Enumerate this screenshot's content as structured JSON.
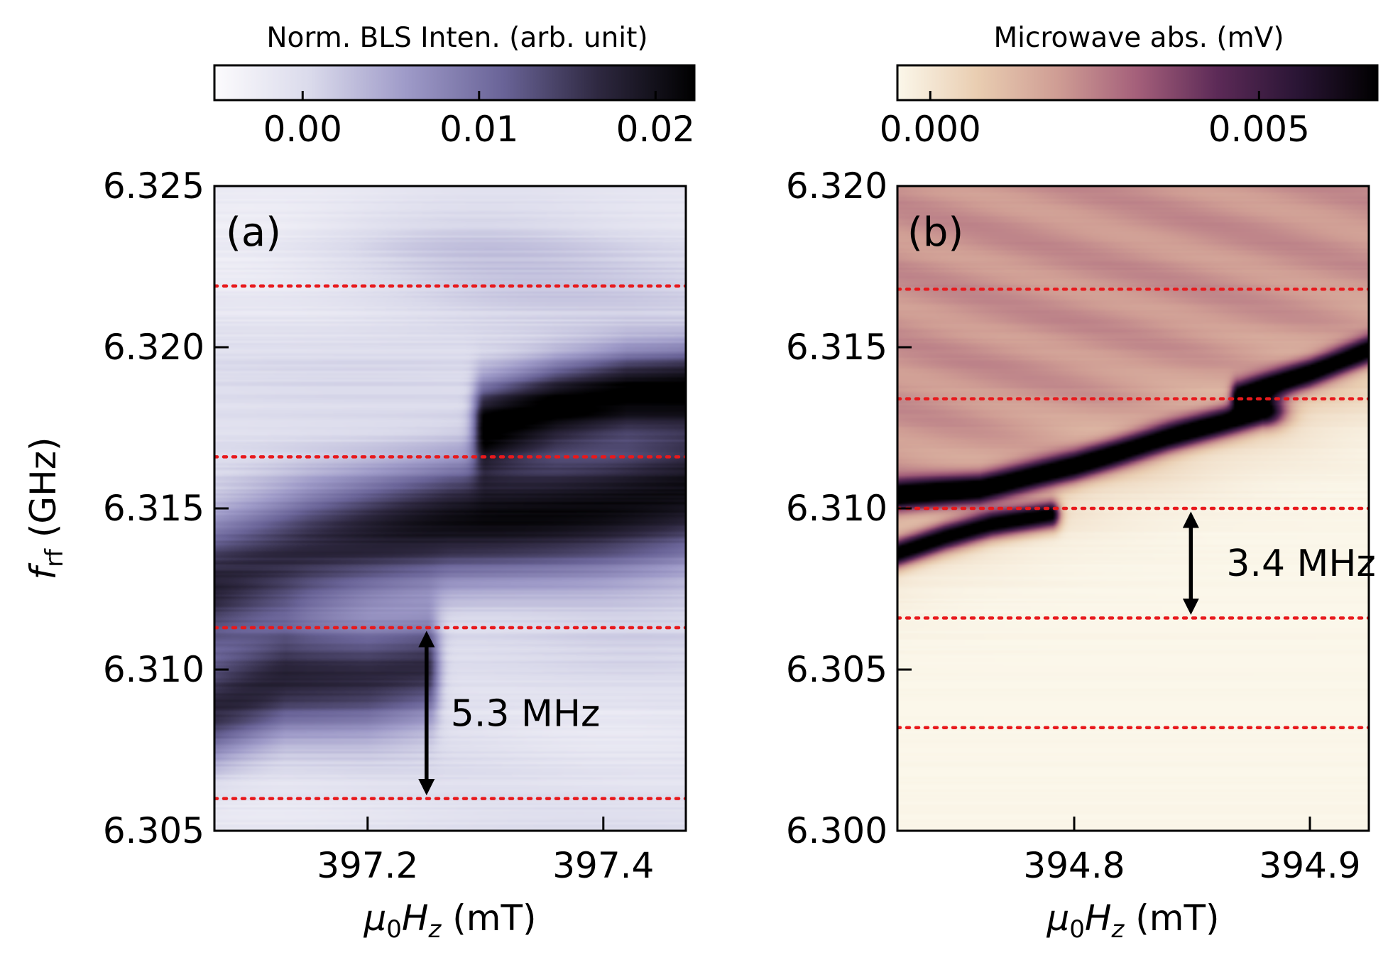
{
  "chart_data": [
    {
      "type": "heatmap",
      "panel": "(a)",
      "colormap": "Purples",
      "xlabel_sym": "μ",
      "xlabel_sub": "0",
      "xlabel_sym2": "H",
      "xlabel_sub2": "z",
      "xlabel_unit": " (mT)",
      "ylabel_sym": "f",
      "ylabel_sub": "rf",
      "ylabel_unit": " (GHz)",
      "xlim": [
        397.07,
        397.47
      ],
      "ylim": [
        6.305,
        6.325
      ],
      "xticks": [
        397.2,
        397.4
      ],
      "xtick_labels": [
        "397.2",
        "397.4"
      ],
      "yticks": [
        6.305,
        6.31,
        6.315,
        6.32,
        6.325
      ],
      "ytick_labels": [
        "6.305",
        "6.310",
        "6.315",
        "6.320",
        "6.325"
      ],
      "colorbar": {
        "label": "Norm. BLS Inten. (arb. unit)",
        "range": [
          -0.005,
          0.0222
        ],
        "ticks": [
          0.0,
          0.01,
          0.02
        ],
        "tick_labels": [
          "0.00",
          "0.01",
          "0.02"
        ],
        "colors": [
          "#fcfbfd",
          "#dadaeb",
          "#9e9ac8",
          "#6a6498",
          "#2e2840",
          "#000000"
        ]
      },
      "ref_lines": [
        6.306,
        6.3113,
        6.3166,
        6.3219
      ],
      "annotation": {
        "text": "5.3 MHz",
        "arrow_x": 397.25,
        "from": 6.306,
        "to": 6.3113
      },
      "bands": [
        {
          "x": [
            397.07,
            397.13,
            397.2,
            397.25
          ],
          "y": [
            6.3088,
            6.3096,
            6.3097,
            6.31
          ],
          "width": 0.0016,
          "amp": 0.62
        },
        {
          "x": [
            397.07,
            397.15,
            397.27,
            397.4,
            397.47
          ],
          "y": [
            6.3128,
            6.3136,
            6.3145,
            6.3151,
            6.3155
          ],
          "width": 0.002,
          "amp": 0.78
        },
        {
          "x": [
            397.3,
            397.36,
            397.42,
            397.47
          ],
          "y": [
            6.3176,
            6.3182,
            6.3186,
            6.3187
          ],
          "width": 0.0013,
          "amp": 0.82
        }
      ]
    },
    {
      "type": "heatmap",
      "panel": "(b)",
      "colormap": "Magma_r",
      "xlabel_sym": "μ",
      "xlabel_sub": "0",
      "xlabel_sym2": "H",
      "xlabel_sub2": "z",
      "xlabel_unit": " (mT)",
      "xlim": [
        394.725,
        394.925
      ],
      "ylim": [
        6.3,
        6.32
      ],
      "xticks": [
        394.8,
        394.9
      ],
      "xtick_labels": [
        "394.8",
        "394.9"
      ],
      "yticks": [
        6.3,
        6.305,
        6.31,
        6.315,
        6.32
      ],
      "ytick_labels": [
        "6.300",
        "6.305",
        "6.310",
        "6.315",
        "6.320"
      ],
      "colorbar": {
        "label": "Microwave abs. (mV)",
        "range": [
          -0.0005,
          0.0068
        ],
        "ticks": [
          0.0,
          0.005
        ],
        "tick_labels": [
          "0.000",
          "0.005"
        ],
        "colors": [
          "#fbf7ea",
          "#e9cdb1",
          "#cf9d94",
          "#a45f7a",
          "#5c2a57",
          "#2a1535",
          "#000000"
        ]
      },
      "ref_lines": [
        6.3032,
        6.3066,
        6.31,
        6.3134,
        6.3168
      ],
      "annotation": {
        "text": "3.4 MHz",
        "arrow_x": 394.8495,
        "from": 6.31,
        "to": 6.3066
      },
      "bands": [
        {
          "x": [
            394.725,
            394.745,
            394.765,
            394.79
          ],
          "y": [
            6.3086,
            6.3091,
            6.3095,
            6.3098
          ],
          "width": 0.00042,
          "amp": 1.0
        },
        {
          "x": [
            394.725,
            394.76,
            394.8,
            394.84,
            394.88
          ],
          "y": [
            6.3104,
            6.3106,
            6.3113,
            6.3122,
            6.313
          ],
          "width": 0.00045,
          "amp": 1.0
        },
        {
          "x": [
            394.87,
            394.9,
            394.925
          ],
          "y": [
            6.3135,
            6.3142,
            6.3149
          ],
          "width": 0.00042,
          "amp": 0.95
        }
      ]
    }
  ]
}
